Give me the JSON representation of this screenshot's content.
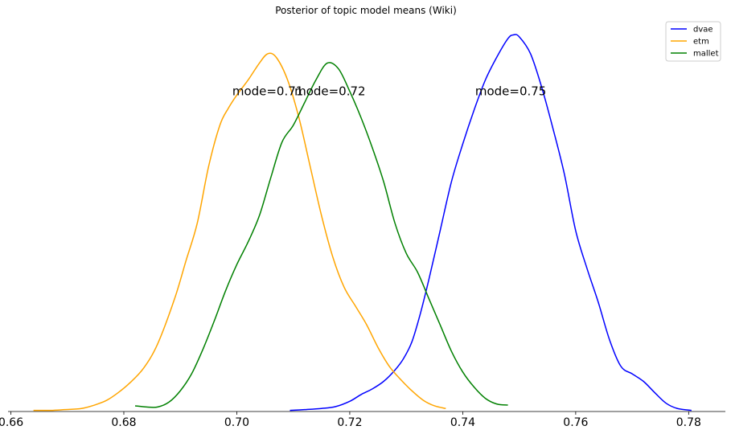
{
  "chart_data": {
    "type": "line",
    "title": "Posterior of topic model means (Wiki)",
    "xlabel": "",
    "ylabel": "",
    "xlim": [
      0.6595,
      0.7865
    ],
    "ylim": [
      0,
      1.02
    ],
    "x_ticks": [
      0.66,
      0.68,
      0.7,
      0.72,
      0.74,
      0.76,
      0.78
    ],
    "x_tick_labels": [
      "0.66",
      "0.68",
      "0.70",
      "0.72",
      "0.74",
      "0.76",
      "0.78"
    ],
    "grid": false,
    "legend": {
      "position": "top-right"
    },
    "series": [
      {
        "name": "dvae",
        "color": "#0000ff",
        "points": [
          [
            0.7094,
            0.003
          ],
          [
            0.712,
            0.005
          ],
          [
            0.715,
            0.008
          ],
          [
            0.7175,
            0.013
          ],
          [
            0.72,
            0.027
          ],
          [
            0.722,
            0.045
          ],
          [
            0.724,
            0.06
          ],
          [
            0.726,
            0.08
          ],
          [
            0.728,
            0.11
          ],
          [
            0.7295,
            0.14
          ],
          [
            0.731,
            0.185
          ],
          [
            0.7325,
            0.26
          ],
          [
            0.734,
            0.35
          ],
          [
            0.736,
            0.48
          ],
          [
            0.738,
            0.61
          ],
          [
            0.74,
            0.71
          ],
          [
            0.742,
            0.8
          ],
          [
            0.744,
            0.88
          ],
          [
            0.746,
            0.94
          ],
          [
            0.748,
            0.99
          ],
          [
            0.749,
            1.0
          ],
          [
            0.75,
            0.995
          ],
          [
            0.752,
            0.95
          ],
          [
            0.754,
            0.86
          ],
          [
            0.756,
            0.75
          ],
          [
            0.758,
            0.63
          ],
          [
            0.76,
            0.48
          ],
          [
            0.762,
            0.38
          ],
          [
            0.764,
            0.29
          ],
          [
            0.766,
            0.19
          ],
          [
            0.768,
            0.12
          ],
          [
            0.77,
            0.1
          ],
          [
            0.772,
            0.08
          ],
          [
            0.774,
            0.05
          ],
          [
            0.776,
            0.022
          ],
          [
            0.778,
            0.008
          ],
          [
            0.7805,
            0.003
          ]
        ]
      },
      {
        "name": "etm",
        "color": "#ffa500",
        "points": [
          [
            0.664,
            0.003
          ],
          [
            0.667,
            0.003
          ],
          [
            0.6695,
            0.005
          ],
          [
            0.6725,
            0.008
          ],
          [
            0.675,
            0.018
          ],
          [
            0.677,
            0.03
          ],
          [
            0.679,
            0.05
          ],
          [
            0.681,
            0.075
          ],
          [
            0.6835,
            0.115
          ],
          [
            0.686,
            0.18
          ],
          [
            0.689,
            0.3
          ],
          [
            0.691,
            0.4
          ],
          [
            0.693,
            0.5
          ],
          [
            0.695,
            0.65
          ],
          [
            0.697,
            0.76
          ],
          [
            0.6985,
            0.805
          ],
          [
            0.7,
            0.84
          ],
          [
            0.702,
            0.88
          ],
          [
            0.704,
            0.925
          ],
          [
            0.7055,
            0.95
          ],
          [
            0.707,
            0.94
          ],
          [
            0.709,
            0.88
          ],
          [
            0.711,
            0.78
          ],
          [
            0.713,
            0.65
          ],
          [
            0.715,
            0.52
          ],
          [
            0.717,
            0.41
          ],
          [
            0.719,
            0.33
          ],
          [
            0.721,
            0.28
          ],
          [
            0.723,
            0.23
          ],
          [
            0.725,
            0.17
          ],
          [
            0.727,
            0.12
          ],
          [
            0.729,
            0.085
          ],
          [
            0.731,
            0.055
          ],
          [
            0.733,
            0.03
          ],
          [
            0.735,
            0.015
          ],
          [
            0.737,
            0.008
          ]
        ]
      },
      {
        "name": "mallet",
        "color": "#008000",
        "points": [
          [
            0.682,
            0.015
          ],
          [
            0.684,
            0.012
          ],
          [
            0.686,
            0.012
          ],
          [
            0.688,
            0.025
          ],
          [
            0.69,
            0.055
          ],
          [
            0.692,
            0.1
          ],
          [
            0.694,
            0.165
          ],
          [
            0.696,
            0.24
          ],
          [
            0.698,
            0.32
          ],
          [
            0.7,
            0.39
          ],
          [
            0.702,
            0.45
          ],
          [
            0.704,
            0.52
          ],
          [
            0.706,
            0.62
          ],
          [
            0.708,
            0.715
          ],
          [
            0.71,
            0.76
          ],
          [
            0.712,
            0.82
          ],
          [
            0.714,
            0.88
          ],
          [
            0.716,
            0.925
          ],
          [
            0.718,
            0.91
          ],
          [
            0.72,
            0.85
          ],
          [
            0.722,
            0.78
          ],
          [
            0.724,
            0.7
          ],
          [
            0.726,
            0.61
          ],
          [
            0.728,
            0.5
          ],
          [
            0.73,
            0.42
          ],
          [
            0.732,
            0.37
          ],
          [
            0.734,
            0.3
          ],
          [
            0.736,
            0.23
          ],
          [
            0.738,
            0.16
          ],
          [
            0.74,
            0.105
          ],
          [
            0.742,
            0.065
          ],
          [
            0.744,
            0.035
          ],
          [
            0.746,
            0.02
          ],
          [
            0.748,
            0.017
          ]
        ]
      }
    ],
    "annotations": [
      {
        "text": "mode=0.75",
        "x": 0.7485,
        "y": 0.84
      },
      {
        "text": "mode=0.71",
        "x": 0.7055,
        "y": 0.84
      },
      {
        "text": "mode=0.72",
        "x": 0.7165,
        "y": 0.84
      }
    ]
  }
}
